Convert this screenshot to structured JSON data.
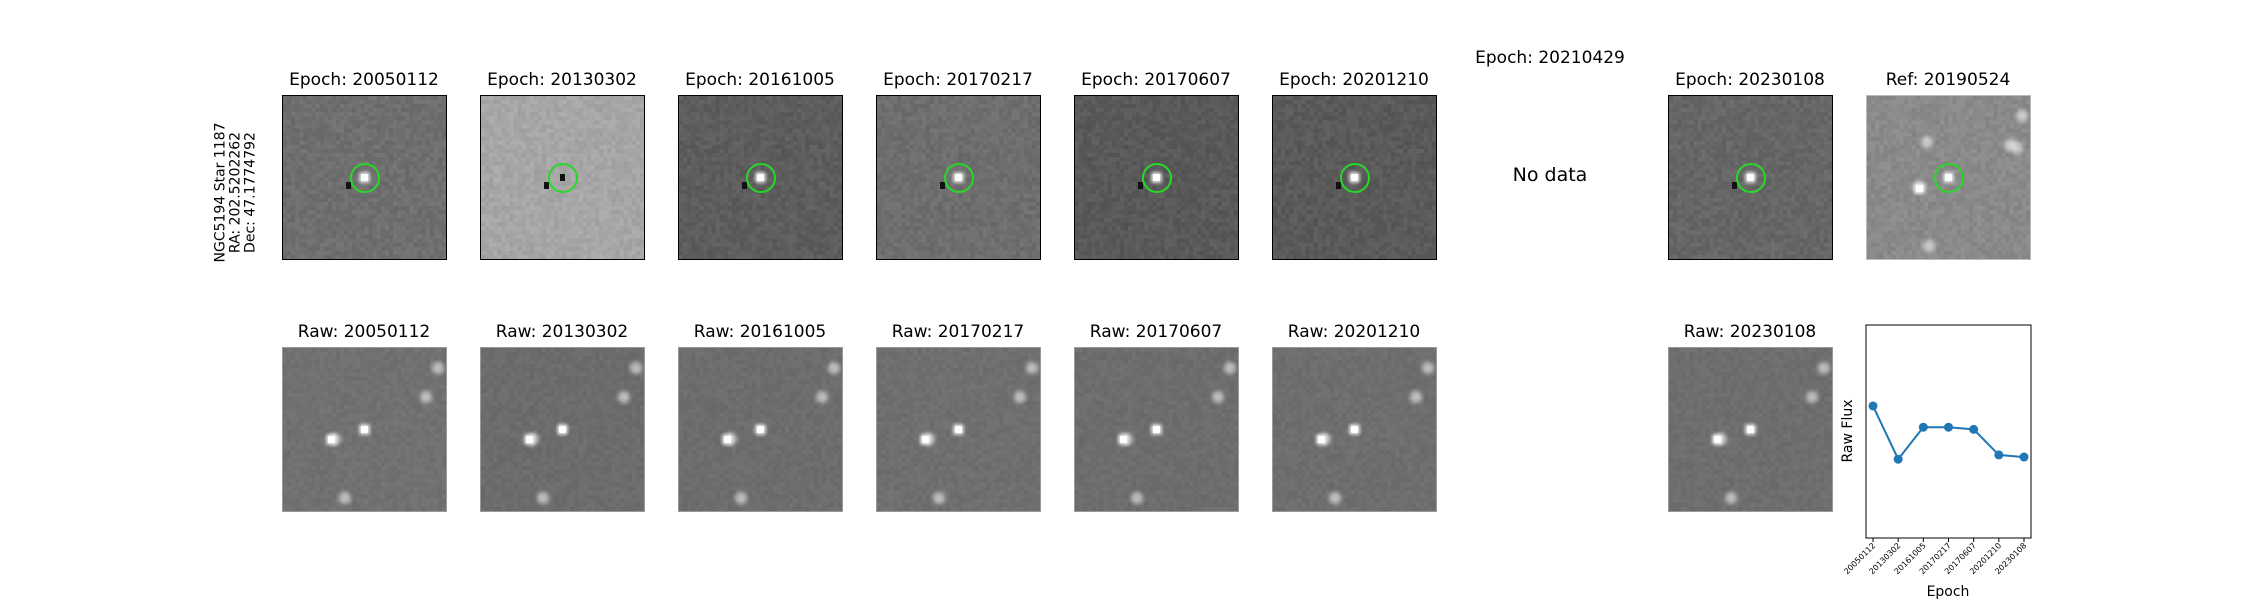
{
  "star_label": {
    "name": "NGC5194 Star 1187",
    "ra": "RA: 202.5202262",
    "dec": "Dec: 47.1774792"
  },
  "diff_row": [
    {
      "title": "Epoch: 20050112",
      "status": "image",
      "tone": "#6f6f6f"
    },
    {
      "title": "Epoch: 20130302",
      "status": "image",
      "tone": "#a6a6a6"
    },
    {
      "title": "Epoch: 20161005",
      "status": "image",
      "tone": "#5d5d5d"
    },
    {
      "title": "Epoch: 20170217",
      "status": "image",
      "tone": "#6e6e6e"
    },
    {
      "title": "Epoch: 20170607",
      "status": "image",
      "tone": "#595959"
    },
    {
      "title": "Epoch: 20201210",
      "status": "image",
      "tone": "#5a5a5a"
    },
    {
      "title": "Epoch: 20210429",
      "status": "missing",
      "message": "No data"
    },
    {
      "title": "Epoch: 20230108",
      "status": "image",
      "tone": "#666666"
    },
    {
      "title": "Ref: 20190524",
      "status": "image",
      "tone": "#8a8a8a"
    }
  ],
  "raw_row": [
    {
      "title": "Raw: 20050112",
      "tone": "#717171"
    },
    {
      "title": "Raw: 20130302",
      "tone": "#6c6c6c"
    },
    {
      "title": "Raw: 20161005",
      "tone": "#6d6d6d"
    },
    {
      "title": "Raw: 20170217",
      "tone": "#6f6f6f"
    },
    {
      "title": "Raw: 20170607",
      "tone": "#6d6d6d"
    },
    {
      "title": "Raw: 20201210",
      "tone": "#6e6e6e"
    },
    {
      "title": "Raw: 20230108",
      "tone": "#6e6e6e"
    }
  ],
  "colors": {
    "ring": "#27d927",
    "line": "#1f77b4"
  },
  "chart_data": {
    "type": "line",
    "categories": [
      "20050112",
      "20130302",
      "20161005",
      "20170217",
      "20170607",
      "20201210",
      "20230108"
    ],
    "values": [
      0.62,
      0.37,
      0.52,
      0.52,
      0.51,
      0.39,
      0.38
    ],
    "xlabel": "Epoch",
    "ylabel": "Raw Flux",
    "yticks": "none",
    "ylim": [
      0,
      1
    ],
    "grid": false
  }
}
